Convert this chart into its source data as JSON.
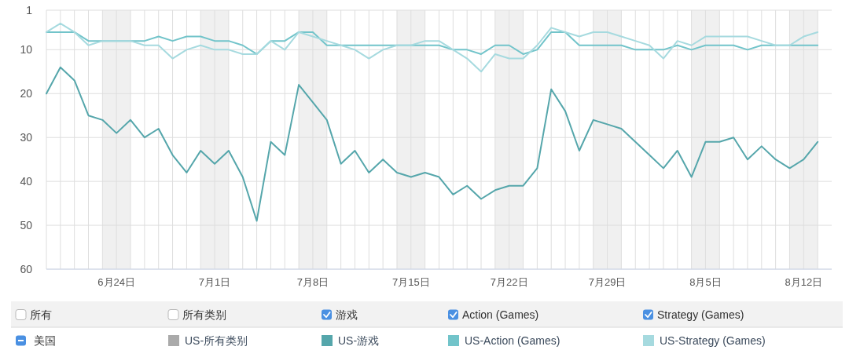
{
  "chart_data": {
    "type": "line",
    "x": [
      "--06-19",
      "--06-20",
      "--06-21",
      "--06-22",
      "--06-23",
      "--06-24",
      "--06-25",
      "--06-26",
      "--06-27",
      "--06-28",
      "--06-29",
      "--06-30",
      "--07-01",
      "--07-02",
      "--07-03",
      "--07-04",
      "--07-05",
      "--07-06",
      "--07-07",
      "--07-08",
      "--07-09",
      "--07-10",
      "--07-11",
      "--07-12",
      "--07-13",
      "--07-14",
      "--07-15",
      "--07-16",
      "--07-17",
      "--07-18",
      "--07-19",
      "--07-20",
      "--07-21",
      "--07-22",
      "--07-23",
      "--07-24",
      "--07-25",
      "--07-26",
      "--07-27",
      "--07-28",
      "--07-29",
      "--07-30",
      "--07-31",
      "--08-01",
      "--08-02",
      "--08-03",
      "--08-04",
      "--08-05",
      "--08-06",
      "--08-07",
      "--08-08",
      "--08-09",
      "--08-10",
      "--08-11",
      "--08-12",
      "--08-13"
    ],
    "xlim": [
      "--06-19",
      "--08-14"
    ],
    "xticks": [
      {
        "value": "--06-19",
        "label": null
      },
      {
        "value": "--06-20",
        "label": null
      },
      {
        "value": "--06-21",
        "label": null
      },
      {
        "value": "--06-22",
        "label": null
      },
      {
        "value": "--06-23",
        "label": null
      },
      {
        "value": "--06-24",
        "label": "6月24日"
      },
      {
        "value": "--06-25",
        "label": null
      },
      {
        "value": "--06-26",
        "label": null
      },
      {
        "value": "--06-27",
        "label": null
      },
      {
        "value": "--06-28",
        "label": null
      },
      {
        "value": "--06-29",
        "label": null
      },
      {
        "value": "--06-30",
        "label": null
      },
      {
        "value": "--07-01",
        "label": "7月1日"
      },
      {
        "value": "--07-02",
        "label": null
      },
      {
        "value": "--07-03",
        "label": null
      },
      {
        "value": "--07-04",
        "label": null
      },
      {
        "value": "--07-05",
        "label": null
      },
      {
        "value": "--07-06",
        "label": null
      },
      {
        "value": "--07-07",
        "label": null
      },
      {
        "value": "--07-08",
        "label": "7月8日"
      },
      {
        "value": "--07-09",
        "label": null
      },
      {
        "value": "--07-10",
        "label": null
      },
      {
        "value": "--07-11",
        "label": null
      },
      {
        "value": "--07-12",
        "label": null
      },
      {
        "value": "--07-13",
        "label": null
      },
      {
        "value": "--07-14",
        "label": null
      },
      {
        "value": "--07-15",
        "label": "7月15日"
      },
      {
        "value": "--07-16",
        "label": null
      },
      {
        "value": "--07-17",
        "label": null
      },
      {
        "value": "--07-18",
        "label": null
      },
      {
        "value": "--07-19",
        "label": null
      },
      {
        "value": "--07-20",
        "label": null
      },
      {
        "value": "--07-21",
        "label": null
      },
      {
        "value": "--07-22",
        "label": "7月22日"
      },
      {
        "value": "--07-23",
        "label": null
      },
      {
        "value": "--07-24",
        "label": null
      },
      {
        "value": "--07-25",
        "label": null
      },
      {
        "value": "--07-26",
        "label": null
      },
      {
        "value": "--07-27",
        "label": null
      },
      {
        "value": "--07-28",
        "label": null
      },
      {
        "value": "--07-29",
        "label": "7月29日"
      },
      {
        "value": "--07-30",
        "label": null
      },
      {
        "value": "--07-31",
        "label": null
      },
      {
        "value": "--08-01",
        "label": null
      },
      {
        "value": "--08-02",
        "label": null
      },
      {
        "value": "--08-03",
        "label": null
      },
      {
        "value": "--08-04",
        "label": null
      },
      {
        "value": "--08-05",
        "label": "8月5日"
      },
      {
        "value": "--08-06",
        "label": null
      },
      {
        "value": "--08-07",
        "label": null
      },
      {
        "value": "--08-08",
        "label": null
      },
      {
        "value": "--08-09",
        "label": null
      },
      {
        "value": "--08-10",
        "label": null
      },
      {
        "value": "--08-11",
        "label": null
      },
      {
        "value": "--08-12",
        "label": "8月12日"
      },
      {
        "value": "--08-13",
        "label": null
      }
    ],
    "ylim": [
      60,
      1
    ],
    "yticks": [
      1,
      10,
      20,
      30,
      40,
      50,
      60
    ],
    "grid": true,
    "bands": [
      {
        "axis": "x",
        "from": "--06-23",
        "to": "--06-25",
        "color": "#f0f0f0"
      },
      {
        "axis": "x",
        "from": "--06-30",
        "to": "--07-02",
        "color": "#f0f0f0"
      },
      {
        "axis": "x",
        "from": "--07-07",
        "to": "--07-09",
        "color": "#f0f0f0"
      },
      {
        "axis": "x",
        "from": "--07-14",
        "to": "--07-16",
        "color": "#f0f0f0"
      },
      {
        "axis": "x",
        "from": "--07-21",
        "to": "--07-23",
        "color": "#f0f0f0"
      },
      {
        "axis": "x",
        "from": "--07-28",
        "to": "--07-30",
        "color": "#f0f0f0"
      },
      {
        "axis": "x",
        "from": "--08-04",
        "to": "--08-06",
        "color": "#f0f0f0"
      },
      {
        "axis": "x",
        "from": "--08-11",
        "to": "--08-13",
        "color": "#f0f0f0"
      }
    ],
    "legend": "bottom",
    "annotations": [
      "所有",
      "所有类别",
      "游戏",
      "Action (Games)",
      "Strategy (Games)",
      "美国"
    ],
    "series": [
      {
        "name": "US-所有类别",
        "color": "#aaaaaa",
        "values": [
          null,
          null,
          null,
          null,
          null,
          null,
          null,
          null,
          null,
          null,
          null,
          null,
          null,
          null,
          null,
          null,
          null,
          null,
          null,
          null,
          null,
          null,
          null,
          null,
          null,
          null,
          null,
          null,
          null,
          null,
          null,
          null,
          null,
          null,
          null,
          null,
          null,
          null,
          null,
          null,
          null,
          null,
          null,
          null,
          null,
          null,
          null,
          null,
          null,
          null,
          null,
          null,
          null,
          null,
          null,
          null
        ]
      },
      {
        "name": "US-游戏",
        "color": "#55a6ab",
        "values": [
          20,
          14,
          17,
          25,
          26,
          29,
          26,
          30,
          28,
          34,
          38,
          33,
          36,
          33,
          39,
          49,
          31,
          34,
          18,
          22,
          26,
          36,
          33,
          38,
          35,
          38,
          39,
          38,
          39,
          43,
          41,
          44,
          42,
          41,
          41,
          37,
          19,
          24,
          33,
          26,
          27,
          28,
          31,
          34,
          37,
          33,
          39,
          31,
          31,
          30,
          35,
          32,
          35,
          37,
          35,
          31
        ]
      },
      {
        "name": "US-Action (Games)",
        "color": "#72c4ca",
        "values": [
          6,
          6,
          6,
          8,
          8,
          8,
          8,
          8,
          7,
          8,
          7,
          7,
          8,
          8,
          9,
          11,
          8,
          8,
          6,
          6,
          9,
          9,
          9,
          9,
          9,
          9,
          9,
          9,
          9,
          10,
          10,
          11,
          9,
          9,
          11,
          10,
          6,
          6,
          9,
          9,
          9,
          9,
          10,
          10,
          10,
          9,
          10,
          9,
          9,
          9,
          10,
          9,
          9,
          9,
          9,
          9
        ]
      },
      {
        "name": "US-Strategy (Games)",
        "color": "#a6dadf",
        "values": [
          6,
          4,
          6,
          9,
          8,
          8,
          8,
          9,
          9,
          12,
          10,
          9,
          10,
          10,
          11,
          11,
          8,
          10,
          6,
          7,
          8,
          9,
          10,
          12,
          10,
          9,
          9,
          8,
          8,
          10,
          12,
          15,
          11,
          12,
          12,
          9,
          5,
          6,
          7,
          6,
          6,
          7,
          8,
          9,
          12,
          8,
          9,
          7,
          7,
          7,
          7,
          8,
          9,
          9,
          7,
          6
        ]
      }
    ]
  }
}
